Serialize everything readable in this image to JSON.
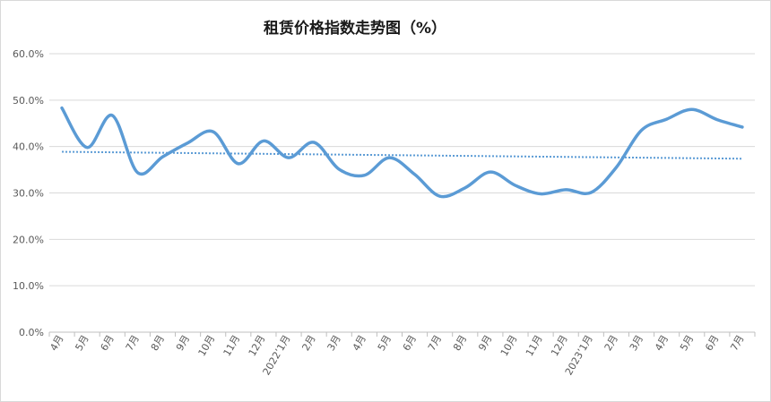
{
  "chart_data": {
    "type": "line",
    "title": "租赁价格指数走势图（%）",
    "xlabel": "",
    "ylabel": "",
    "ylim": [
      0,
      60
    ],
    "yticks": [
      "0.0%",
      "10.0%",
      "20.0%",
      "30.0%",
      "40.0%",
      "50.0%",
      "60.0%"
    ],
    "grid": true,
    "legend": "none",
    "categories": [
      "4月",
      "5月",
      "6月",
      "7月",
      "8月",
      "9月",
      "10月",
      "11月",
      "12月",
      "2022’1月",
      "2月",
      "3月",
      "4月",
      "5月",
      "6月",
      "7月",
      "8月",
      "9月",
      "10月",
      "11月",
      "12月",
      "2023’1月",
      "2月",
      "3月",
      "4月",
      "5月",
      "6月",
      "7月"
    ],
    "series": [
      {
        "values": [
          48.3,
          39.8,
          46.7,
          34.4,
          37.8,
          40.8,
          43.2,
          36.3,
          41.2,
          37.6,
          40.9,
          35.1,
          33.8,
          37.6,
          34.0,
          29.3,
          31.1,
          34.5,
          31.6,
          29.8,
          30.7,
          30.1,
          35.5,
          43.5,
          45.9,
          48.0,
          45.8,
          44.2
        ],
        "color": "#5b9bd5"
      }
    ],
    "trendline": {
      "type": "linear",
      "color": "#5b9bd5",
      "style": "dotted"
    }
  }
}
